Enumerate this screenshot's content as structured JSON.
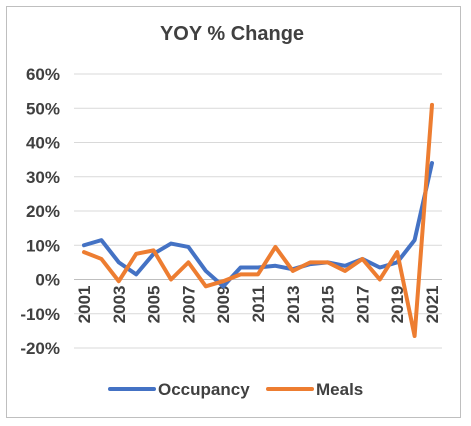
{
  "chart_data": {
    "type": "line",
    "title": "YOY % Change",
    "xlabel": "",
    "ylabel": "",
    "x": [
      2001,
      2002,
      2003,
      2004,
      2005,
      2006,
      2007,
      2008,
      2009,
      2010,
      2011,
      2012,
      2013,
      2014,
      2015,
      2016,
      2017,
      2018,
      2019,
      2020,
      2021
    ],
    "x_tick_labels": [
      "2001",
      "2003",
      "2005",
      "2007",
      "2009",
      "2011",
      "2013",
      "2015",
      "2017",
      "2019",
      "2021"
    ],
    "ylim": [
      -20,
      60
    ],
    "y_ticks": [
      -20,
      -10,
      0,
      10,
      20,
      30,
      40,
      50,
      60
    ],
    "y_tick_labels": [
      "-20%",
      "-10%",
      "0%",
      "10%",
      "20%",
      "30%",
      "40%",
      "50%",
      "60%"
    ],
    "grid": true,
    "legend_position": "bottom",
    "series": [
      {
        "name": "Occupancy",
        "color": "#4472C4",
        "values": [
          10,
          11.5,
          5,
          1.5,
          7.5,
          10.5,
          9.5,
          2.5,
          -2,
          3.5,
          3.5,
          4,
          3,
          4.5,
          5,
          4,
          6,
          3.5,
          5,
          11.5,
          34
        ]
      },
      {
        "name": "Meals",
        "color": "#ED7D31",
        "values": [
          8,
          6,
          -0.5,
          7.5,
          8.5,
          0,
          5,
          -2,
          -0.5,
          1.5,
          1.5,
          9.5,
          2.5,
          5,
          5,
          2.5,
          6,
          0,
          8,
          -16.5,
          51
        ]
      }
    ]
  }
}
